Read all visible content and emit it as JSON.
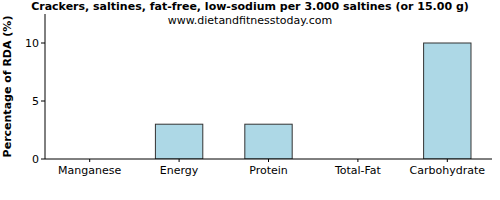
{
  "chart_data": {
    "type": "bar",
    "title": "Crackers, saltines, fat-free, low-sodium per 3.000 saltines (or 15.00 g)",
    "subtitle": "www.dietandfitnesstoday.com",
    "y_label": "Percentage of RDA (%)",
    "categories": [
      "Manganese",
      "Energy",
      "Protein",
      "Total-Fat",
      "Carbohydrate"
    ],
    "values": [
      0,
      3,
      3,
      0,
      10
    ],
    "color": "#add8e6",
    "ylim": [
      0,
      12.5
    ],
    "yticks": [
      0,
      5,
      10
    ],
    "grid": false
  }
}
